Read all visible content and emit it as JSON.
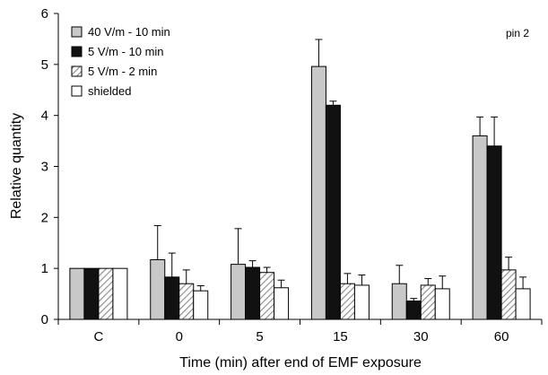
{
  "chart_data": {
    "type": "bar",
    "title": "",
    "annotation": "pin 2",
    "xlabel": "Time (min) after end of EMF exposure",
    "ylabel": "Relative quantity",
    "ylim": [
      0,
      6
    ],
    "yticks": [
      "0",
      "1",
      "2",
      "3",
      "4",
      "5",
      "6"
    ],
    "categories": [
      "C",
      "0",
      "5",
      "15",
      "30",
      "60"
    ],
    "legend_position": "top-left",
    "series": [
      {
        "name": "40 V/m - 10 min",
        "fill": "#c8c8c8",
        "pattern": "solid",
        "values": [
          1.0,
          1.17,
          1.08,
          4.96,
          0.7,
          3.6
        ],
        "errors": [
          0,
          0.67,
          0.7,
          0.53,
          0.36,
          0.37
        ]
      },
      {
        "name": "5 V/m - 10 min",
        "fill": "#111111",
        "pattern": "solid",
        "values": [
          1.0,
          0.83,
          1.02,
          4.2,
          0.36,
          3.4
        ],
        "errors": [
          0,
          0.47,
          0.13,
          0.08,
          0.05,
          0.57
        ]
      },
      {
        "name": "5 V/m - 2 min",
        "fill": "#ffffff",
        "pattern": "hatch",
        "values": [
          1.0,
          0.7,
          0.92,
          0.7,
          0.67,
          0.97
        ],
        "errors": [
          0,
          0.27,
          0.1,
          0.2,
          0.13,
          0.25
        ]
      },
      {
        "name": "shielded",
        "fill": "#ffffff",
        "pattern": "solid",
        "values": [
          1.0,
          0.56,
          0.62,
          0.67,
          0.6,
          0.6
        ],
        "errors": [
          0,
          0.1,
          0.15,
          0.2,
          0.25,
          0.23
        ]
      }
    ]
  }
}
